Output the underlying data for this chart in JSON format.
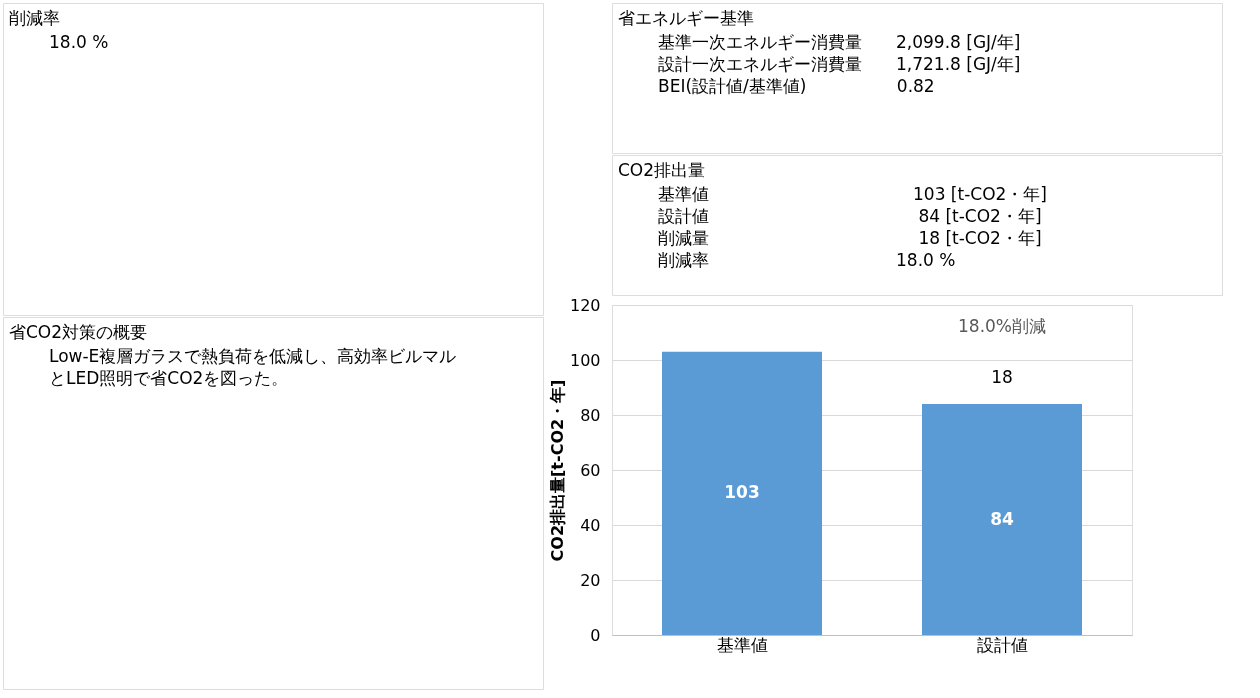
{
  "chart_data": [
    {
      "type": "other",
      "title": "削減率",
      "annotations": [
        "18.0 %"
      ]
    },
    {
      "type": "other",
      "title": "省CO2対策の概要",
      "annotations": [
        "Low-E複層ガラスで熱負荷を低減し、高効率ビルマルとLED照明で省CO2を図った。"
      ]
    },
    {
      "type": "other",
      "title": "省エネルギー基準",
      "annotations": [
        "基準一次エネルギー消費量　　2,099.8 [GJ/年]",
        "設計一次エネルギー消費量　　1,721.8 [GJ/年]",
        "BEI(設計値/基準値)　　　　　 0.82"
      ]
    },
    {
      "type": "other",
      "title": "CO2排出量",
      "annotations": [
        "基準値　　　　　　　　　　　　103 [t-CO2・年]",
        "設計値　　　　　　　　　　　　 84 [t-CO2・年]",
        "削減量　　　　　　　　　　　　 18 [t-CO2・年]",
        "削減率　　　　　　　　　　　18.0 %"
      ]
    },
    {
      "type": "bar",
      "categories": [
        "基準値",
        "設計値"
      ],
      "values": [
        103,
        84
      ],
      "color": "#5b9bd5",
      "ylim": [
        0,
        120
      ],
      "yticks": [
        0,
        20,
        40,
        60,
        80,
        100,
        120
      ],
      "ylabel": "CO2排出量[t-CO2・年]",
      "grid": "y",
      "data_labels": true,
      "annotations": [
        "18.0%削減",
        "18"
      ]
    }
  ]
}
